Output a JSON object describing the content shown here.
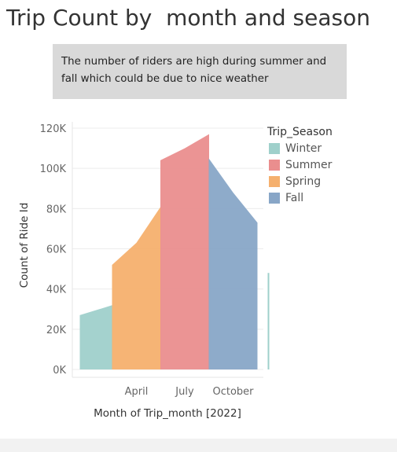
{
  "page": {
    "title": "Trip Count by  month and season",
    "note": "The number of riders are high during summer and fall which could be due to nice weather"
  },
  "legend": {
    "title": "Trip_Season",
    "items": [
      {
        "label": "Winter",
        "color": "#9fd0cb"
      },
      {
        "label": "Summer",
        "color": "#ea8e8e"
      },
      {
        "label": "Spring",
        "color": "#f5b06e"
      },
      {
        "label": "Fall",
        "color": "#88a6c7"
      }
    ]
  },
  "chart_data": {
    "type": "area",
    "title": "",
    "xlabel": "Month of Trip_month [2022]",
    "ylabel": "Count of Ride Id",
    "ylim": [
      0,
      120000
    ],
    "yticks": [
      0,
      20000,
      40000,
      60000,
      80000,
      100000,
      120000
    ],
    "ytick_labels": [
      "0K",
      "20K",
      "40K",
      "60K",
      "80K",
      "100K",
      "120K"
    ],
    "x_tick_labels": [
      {
        "month": 4,
        "label": "April"
      },
      {
        "month": 7,
        "label": "July"
      },
      {
        "month": 10,
        "label": "October"
      }
    ],
    "series": [
      {
        "name": "Winter",
        "color": "#9fd0cb",
        "points": [
          {
            "month": 1,
            "value": 27000
          },
          {
            "month": 2,
            "value": 32000
          }
        ]
      },
      {
        "name": "Spring",
        "color": "#f5b06e",
        "points": [
          {
            "month": 3,
            "value": 52000
          },
          {
            "month": 4,
            "value": 63000
          },
          {
            "month": 5,
            "value": 81000
          }
        ]
      },
      {
        "name": "Summer",
        "color": "#ea8e8e",
        "points": [
          {
            "month": 6,
            "value": 104000
          },
          {
            "month": 7,
            "value": 110000
          },
          {
            "month": 8,
            "value": 117000
          }
        ]
      },
      {
        "name": "Fall",
        "color": "#88a6c7",
        "points": [
          {
            "month": 9,
            "value": 105000
          },
          {
            "month": 10,
            "value": 88000
          },
          {
            "month": 11,
            "value": 73000
          }
        ]
      },
      {
        "name": "Winter",
        "color": "#9fd0cb",
        "points": [
          {
            "month": 12,
            "value": 48000
          }
        ]
      }
    ],
    "grid": true,
    "legend_position": "right"
  }
}
